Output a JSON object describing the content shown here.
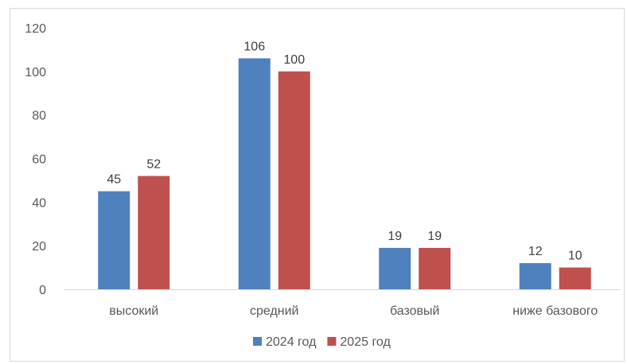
{
  "chart_data": {
    "type": "bar",
    "title": "",
    "xlabel": "",
    "ylabel": "",
    "categories": [
      "высокий",
      "средний",
      "базовый",
      "ниже базового"
    ],
    "series": [
      {
        "name": "2024 год",
        "values": [
          45,
          106,
          19,
          12
        ],
        "color": "#4f81bd"
      },
      {
        "name": "2025 год",
        "values": [
          52,
          100,
          19,
          10
        ],
        "color": "#c0504d"
      }
    ],
    "ylim": [
      0,
      120
    ],
    "yticks": [
      0,
      20,
      40,
      60,
      80,
      100,
      120
    ],
    "grid": false,
    "data_labels": true,
    "legend_position": "bottom"
  }
}
